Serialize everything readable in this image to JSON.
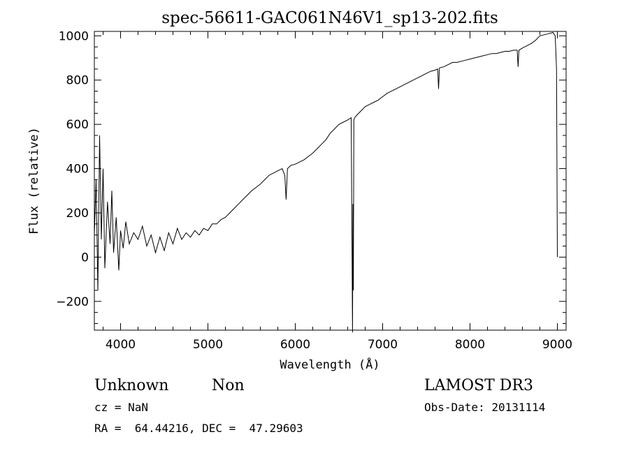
{
  "chart_data": {
    "type": "line",
    "title": "spec-56611-GAC061N46V1_sp13-202.fits",
    "xlabel": "Wavelength (Å)",
    "ylabel": "Flux (relative)",
    "xlim": [
      3700,
      9100
    ],
    "ylim": [
      -330,
      1020
    ],
    "xticks": [
      4000,
      5000,
      6000,
      7000,
      8000,
      9000
    ],
    "yticks": [
      -200,
      0,
      200,
      400,
      600,
      800,
      1000
    ],
    "grid": false,
    "line_color": "#000000",
    "series": [
      {
        "x": [
          3700,
          3720,
          3740,
          3760,
          3780,
          3800,
          3820,
          3850,
          3880,
          3900,
          3920,
          3950,
          3980,
          4000,
          4030,
          4060,
          4100,
          4150,
          4200,
          4250,
          4300,
          4350,
          4400,
          4450,
          4500,
          4550,
          4600,
          4650,
          4700,
          4750,
          4800,
          4850,
          4900,
          4950,
          5000,
          5050,
          5100,
          5150,
          5200,
          5250,
          5300,
          5350,
          5400,
          5450,
          5500,
          5550,
          5600,
          5650,
          5700,
          5750,
          5800,
          5850,
          5880,
          5895,
          5910,
          5950,
          6000,
          6050,
          6100,
          6150,
          6200,
          6250,
          6300,
          6350,
          6400,
          6450,
          6500,
          6550,
          6600,
          6640,
          6655,
          6660,
          6665,
          6670,
          6680,
          6700,
          6750,
          6800,
          6850,
          6900,
          6950,
          7000,
          7050,
          7100,
          7150,
          7200,
          7250,
          7300,
          7350,
          7400,
          7450,
          7500,
          7550,
          7600,
          7630,
          7640,
          7650,
          7700,
          7750,
          7800,
          7850,
          7900,
          7950,
          8000,
          8050,
          8100,
          8150,
          8200,
          8250,
          8300,
          8350,
          8400,
          8450,
          8500,
          8540,
          8550,
          8560,
          8600,
          8650,
          8700,
          8750,
          8800,
          8850,
          8900,
          8950,
          8975,
          8990,
          9000
        ],
        "y": [
          100,
          350,
          -150,
          550,
          80,
          400,
          -50,
          250,
          60,
          300,
          20,
          180,
          -60,
          120,
          40,
          160,
          60,
          110,
          80,
          140,
          50,
          100,
          20,
          90,
          30,
          110,
          60,
          130,
          80,
          110,
          90,
          120,
          100,
          130,
          120,
          150,
          150,
          170,
          180,
          200,
          220,
          240,
          260,
          280,
          300,
          315,
          330,
          350,
          370,
          380,
          390,
          400,
          370,
          260,
          400,
          415,
          420,
          430,
          440,
          455,
          470,
          490,
          510,
          530,
          560,
          580,
          600,
          610,
          620,
          630,
          -340,
          240,
          -150,
          620,
          630,
          640,
          660,
          680,
          690,
          700,
          710,
          725,
          740,
          750,
          760,
          770,
          780,
          790,
          800,
          810,
          820,
          830,
          840,
          845,
          850,
          760,
          855,
          860,
          870,
          880,
          880,
          885,
          890,
          895,
          900,
          905,
          910,
          915,
          920,
          920,
          925,
          930,
          930,
          935,
          935,
          860,
          935,
          945,
          955,
          965,
          980,
          1000,
          1005,
          1010,
          1015,
          1000,
          850,
          0
        ]
      }
    ]
  },
  "annotations": {
    "object_class": "Unknown",
    "object_subclass": "Non",
    "survey": "LAMOST DR3",
    "redshift": "cz = NaN",
    "obs_date": "Obs-Date: 20131114",
    "coords": "RA =  64.44216, DEC =  47.29603"
  }
}
